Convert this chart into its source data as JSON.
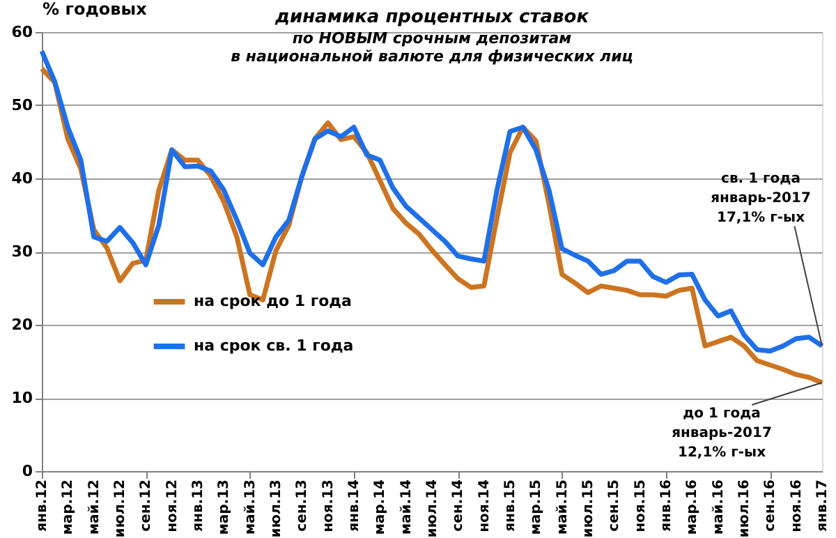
{
  "chart_data": {
    "type": "line",
    "title": "динамика процентных ставок",
    "subtitle": "по НОВЫМ срочным депозитам\nв национальной валюте для физических лиц",
    "ylabel": "% годовых",
    "categories": [
      "янв.12",
      null,
      "мар.12",
      null,
      "май.12",
      null,
      "июл.12",
      null,
      "сен.12",
      null,
      "ноя.12",
      null,
      "янв.13",
      null,
      "мар.13",
      null,
      "май.13",
      null,
      "июл.13",
      null,
      "сен.13",
      null,
      "ноя.13",
      null,
      "янв.14",
      null,
      "мар.14",
      null,
      "май.14",
      null,
      "июл.14",
      null,
      "сен.14",
      null,
      "ноя.14",
      null,
      "янв.15",
      null,
      "мар.15",
      null,
      "май.15",
      null,
      "июл.15",
      null,
      "сен.15",
      null,
      "ноя.15",
      null,
      "янв.16",
      null,
      "мар.16",
      null,
      "май.16",
      null,
      "июл.16",
      null,
      "сен.16",
      null,
      "ноя.16",
      null,
      "янв.17"
    ],
    "series": [
      {
        "name": "на срок до 1 года",
        "color": "#cc7421",
        "values": [
          55.0,
          53.1,
          45.4,
          41.3,
          33.0,
          30.5,
          26.0,
          28.4,
          28.8,
          38.4,
          43.9,
          42.5,
          42.5,
          40.3,
          36.8,
          32.0,
          24.1,
          23.4,
          30.1,
          33.6,
          40.3,
          45.4,
          47.6,
          45.3,
          45.7,
          43.5,
          39.7,
          35.9,
          33.9,
          32.4,
          30.2,
          28.2,
          26.3,
          25.1,
          25.3,
          34.6,
          43.5,
          47.0,
          45.1,
          36.5,
          26.9,
          25.7,
          24.4,
          25.3,
          25.0,
          24.7,
          24.1,
          24.1,
          23.9,
          24.7,
          25.0,
          17.1,
          17.7,
          18.3,
          17.1,
          15.1,
          14.5,
          13.9,
          13.2,
          12.8,
          12.1
        ]
      },
      {
        "name": "на срок св. 1 года",
        "color": "#1f6fe8",
        "values": [
          57.4,
          53.2,
          47.0,
          42.5,
          32.0,
          31.4,
          33.3,
          31.2,
          28.2,
          33.6,
          43.9,
          41.6,
          41.7,
          41.0,
          38.4,
          34.3,
          29.8,
          28.2,
          32.0,
          34.3,
          40.3,
          45.4,
          46.5,
          45.7,
          47.0,
          43.2,
          42.5,
          38.7,
          36.2,
          34.6,
          33.0,
          31.4,
          29.4,
          29.0,
          28.7,
          38.4,
          46.4,
          47.0,
          43.9,
          38.4,
          30.4,
          29.5,
          28.7,
          26.9,
          27.4,
          28.7,
          28.7,
          26.6,
          25.8,
          26.8,
          26.9,
          23.4,
          21.2,
          21.9,
          18.6,
          16.6,
          16.4,
          17.1,
          18.1,
          18.3,
          17.1
        ]
      }
    ],
    "ylim": [
      0,
      60
    ],
    "yticks": [
      0,
      10,
      20,
      30,
      40,
      50,
      60
    ],
    "grid": "y",
    "legend": "left",
    "marker": "none",
    "line_style": "solid",
    "annotations": [
      {
        "text": "св. 1 года\nянварь-2017\n17,1% г-ых",
        "x": "янв.17",
        "y": 17.1
      },
      {
        "text": "до 1 года\nянварь-2017\n12,1% г-ых",
        "x": "янв.17",
        "y": 12.1
      }
    ]
  }
}
